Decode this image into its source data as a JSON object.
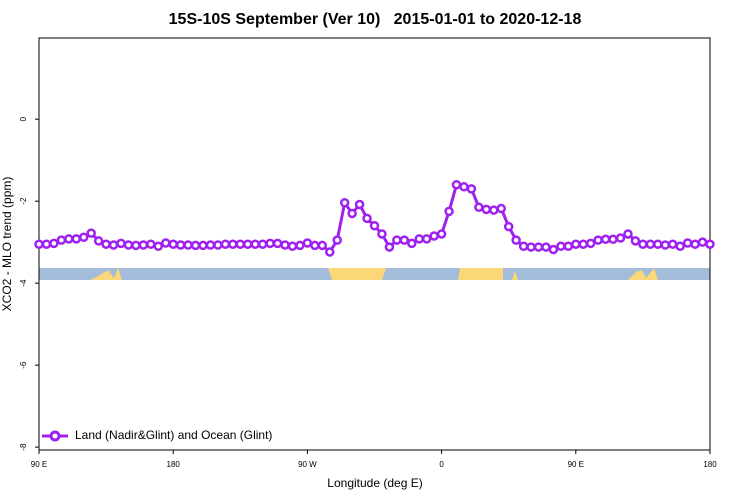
{
  "chart_data": {
    "type": "line",
    "title": "15S-10S September (Ver 10)   2015-01-01 to 2020-12-18",
    "x_label": "Longitude (deg E)",
    "y_label": "XCO2 - MLO trend (ppm)",
    "x": [
      90,
      95,
      100,
      105,
      110,
      115,
      120,
      125,
      130,
      135,
      140,
      145,
      150,
      155,
      160,
      165,
      170,
      175,
      180,
      185,
      190,
      195,
      200,
      205,
      210,
      215,
      220,
      225,
      230,
      235,
      240,
      245,
      250,
      255,
      260,
      265,
      270,
      275,
      280,
      285,
      290,
      295,
      300,
      305,
      310,
      315,
      320,
      325,
      330,
      335,
      340,
      345,
      350,
      355,
      360,
      365,
      370,
      375,
      380,
      385,
      390,
      395,
      400,
      405,
      410,
      415,
      420,
      425,
      430,
      435,
      440,
      445,
      450,
      455,
      460,
      465,
      470,
      475,
      480,
      485,
      490,
      495,
      500,
      505,
      510,
      515,
      520,
      525,
      530,
      535,
      540
    ],
    "series": [
      {
        "name": "Land (Nadir&Glint) and Ocean (Glint)",
        "color": "#a020f0",
        "values": [
          -3.05,
          -3.05,
          -3.03,
          -2.95,
          -2.92,
          -2.92,
          -2.88,
          -2.78,
          -2.97,
          -3.05,
          -3.07,
          -3.03,
          -3.07,
          -3.08,
          -3.07,
          -3.05,
          -3.1,
          -3.02,
          -3.05,
          -3.07,
          -3.07,
          -3.08,
          -3.08,
          -3.07,
          -3.07,
          -3.05,
          -3.05,
          -3.05,
          -3.05,
          -3.05,
          -3.05,
          -3.03,
          -3.03,
          -3.07,
          -3.1,
          -3.08,
          -3.02,
          -3.08,
          -3.08,
          -3.24,
          -2.95,
          -2.04,
          -2.3,
          -2.08,
          -2.42,
          -2.6,
          -2.8,
          -3.12,
          -2.95,
          -2.95,
          -3.03,
          -2.92,
          -2.92,
          -2.85,
          -2.8,
          -2.25,
          -1.6,
          -1.65,
          -1.7,
          -2.15,
          -2.2,
          -2.22,
          -2.18,
          -2.62,
          -2.95,
          -3.1,
          -3.12,
          -3.12,
          -3.12,
          -3.18,
          -3.1,
          -3.1,
          -3.05,
          -3.05,
          -3.03,
          -2.95,
          -2.93,
          -2.93,
          -2.9,
          -2.8,
          -2.97,
          -3.05,
          -3.05,
          -3.05,
          -3.07,
          -3.05,
          -3.1,
          -3.02,
          -3.05,
          -3.0,
          -3.05
        ]
      }
    ],
    "xlim": [
      90,
      540
    ],
    "xticks": [
      {
        "value": 90,
        "label": "90 E"
      },
      180,
      {
        "value": 270,
        "label": "90 W"
      },
      {
        "value": 360,
        "label": "0"
      },
      {
        "value": 450,
        "label": "90 E"
      },
      {
        "value": 540,
        "label": "180"
      }
    ],
    "ylim": [
      -8.07,
      1.98
    ],
    "yticks": [
      0,
      -2,
      -4,
      -6,
      -8
    ],
    "legend": "bottom-left"
  }
}
